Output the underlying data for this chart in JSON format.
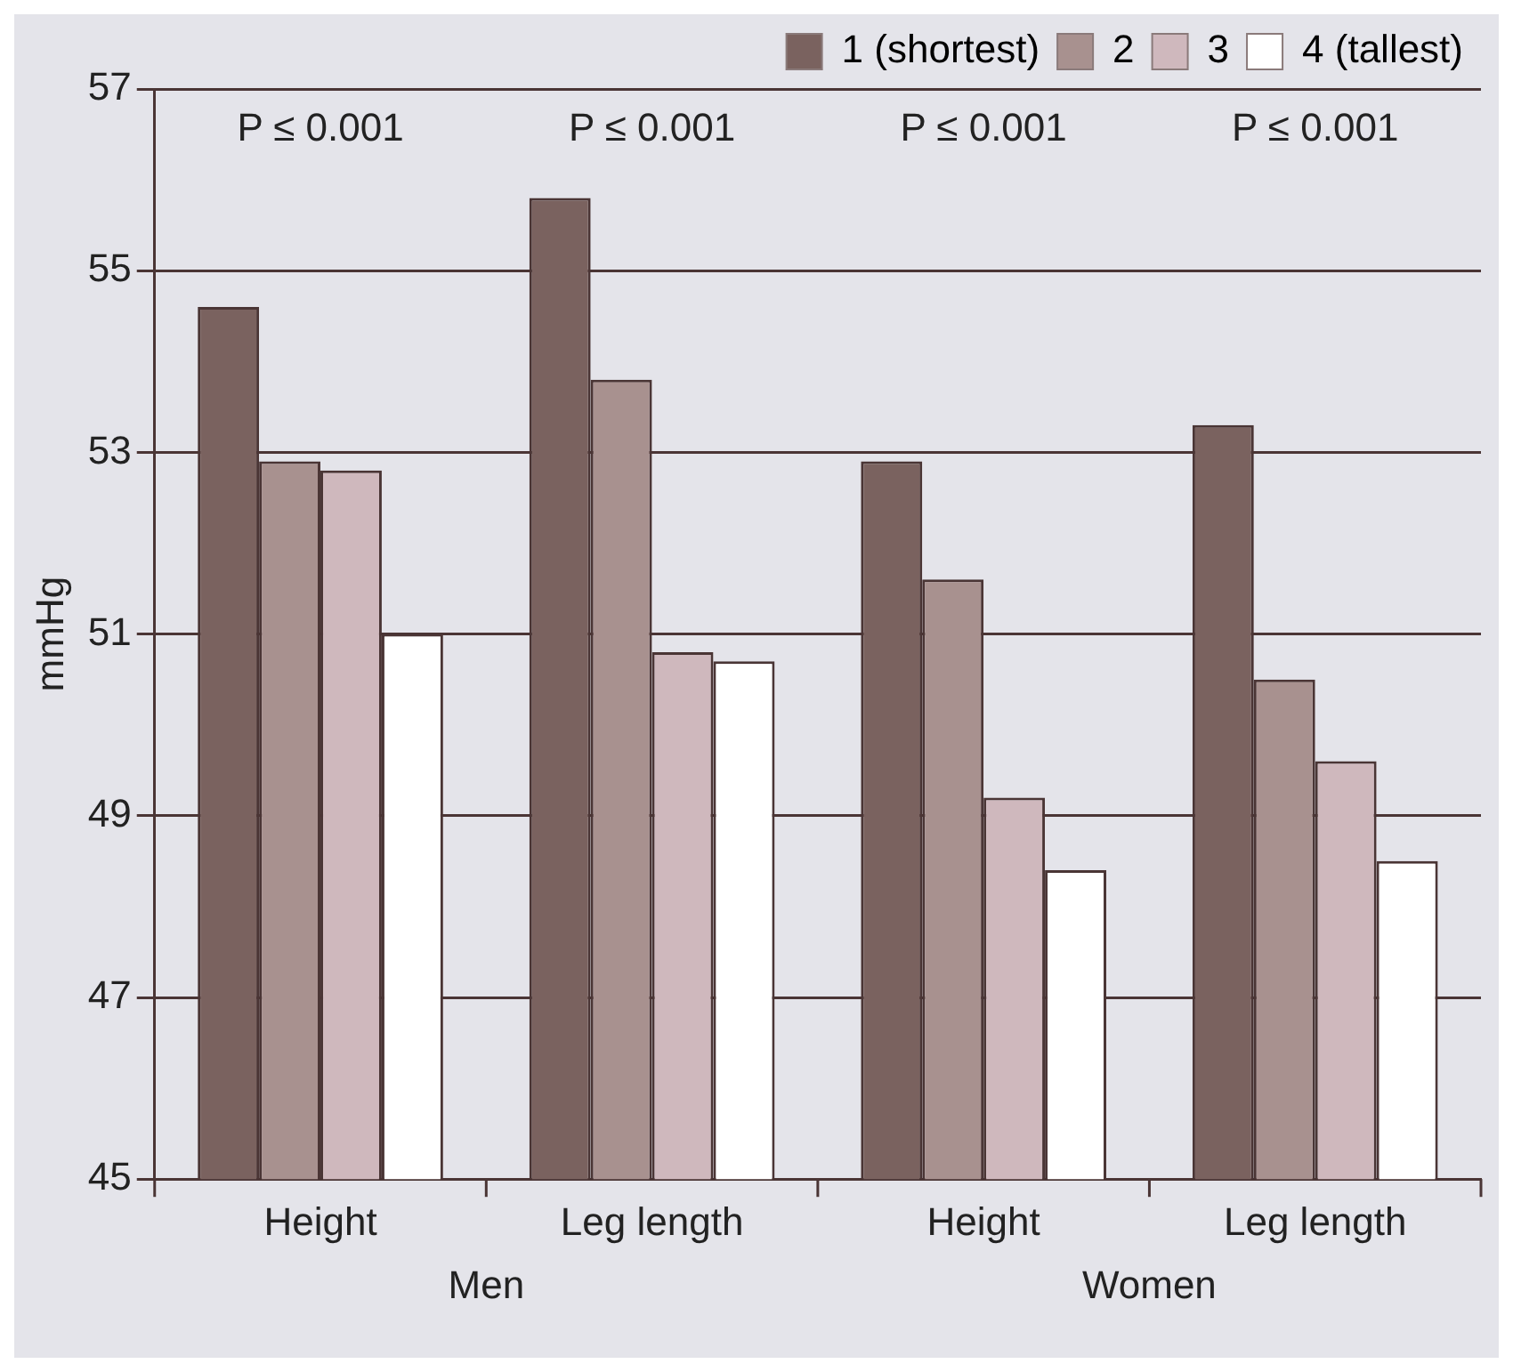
{
  "chart_data": {
    "type": "bar",
    "ylabel": "mmHg",
    "categories": [
      "Height",
      "Leg length",
      "Height",
      "Leg length"
    ],
    "series": [
      {
        "name": "1 (shortest)",
        "color": "#7a625f",
        "values": [
          54.6,
          55.8,
          52.9,
          53.3
        ]
      },
      {
        "name": "2",
        "color": "#a8918f",
        "values": [
          52.9,
          53.8,
          51.6,
          50.5
        ]
      },
      {
        "name": "3",
        "color": "#cfb8bd",
        "values": [
          52.8,
          50.8,
          49.2,
          49.6
        ]
      },
      {
        "name": "4 (tallest)",
        "color": "#ffffff",
        "values": [
          51.0,
          50.7,
          48.4,
          48.5
        ]
      }
    ],
    "ylim": [
      45,
      57
    ],
    "yticks": [
      45,
      47,
      49,
      51,
      53,
      55,
      57
    ],
    "grid": "y",
    "legend": "top right",
    "annotations": [
      "P ≤ 0.001",
      "P ≤ 0.001",
      "P ≤ 0.001",
      "P ≤ 0.001",
      "Men",
      "Women"
    ]
  }
}
